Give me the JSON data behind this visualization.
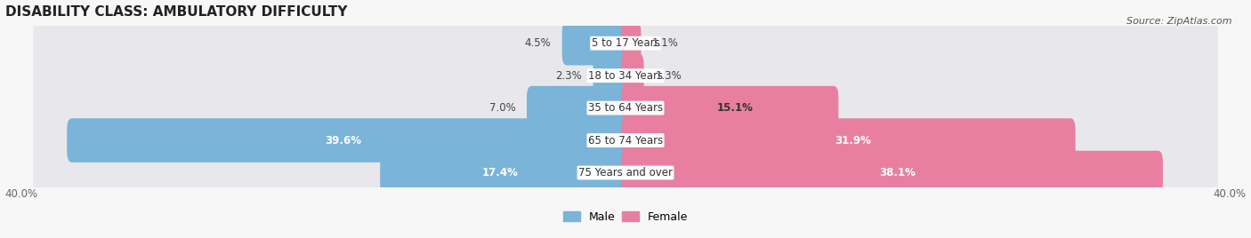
{
  "title": "DISABILITY CLASS: AMBULATORY DIFFICULTY",
  "source": "Source: ZipAtlas.com",
  "categories": [
    "5 to 17 Years",
    "18 to 34 Years",
    "35 to 64 Years",
    "65 to 74 Years",
    "75 Years and over"
  ],
  "male_values": [
    4.5,
    2.3,
    7.0,
    39.6,
    17.4
  ],
  "female_values": [
    1.1,
    1.3,
    15.1,
    31.9,
    38.1
  ],
  "male_color": "#7ab4d8",
  "female_color": "#e87fa0",
  "row_bg_color": "#e8e8ec",
  "x_min": -40.0,
  "x_max": 40.0,
  "axis_label_left": "40.0%",
  "axis_label_right": "40.0%",
  "legend_male": "Male",
  "legend_female": "Female",
  "title_fontsize": 11,
  "label_fontsize": 8.5,
  "category_fontsize": 8.5,
  "fig_bg": "#f7f7f7"
}
